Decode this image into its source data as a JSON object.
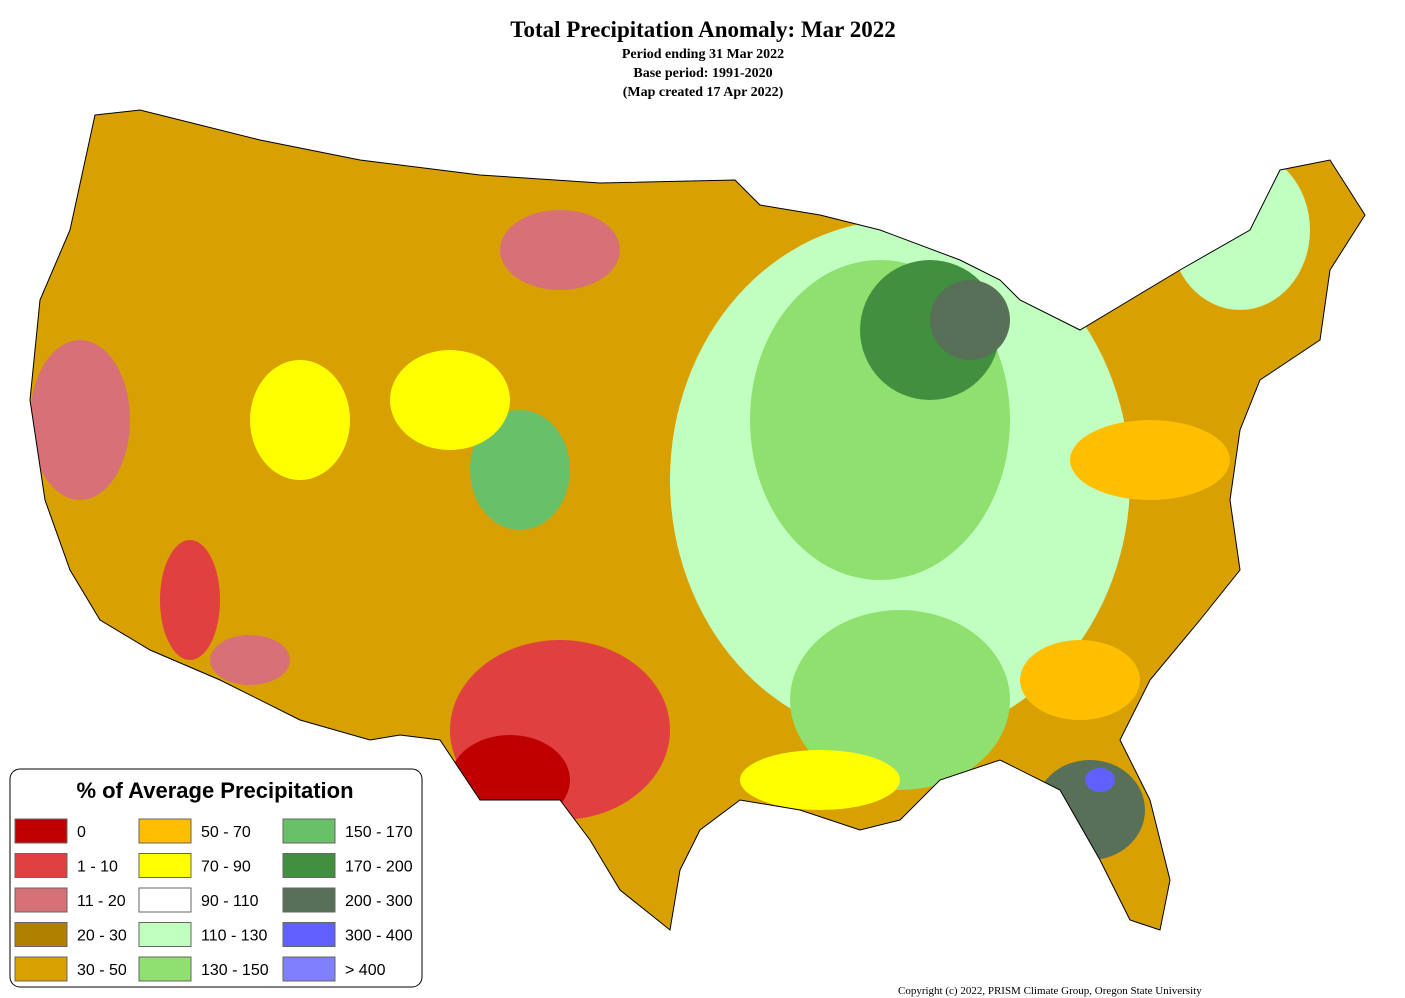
{
  "header": {
    "title": "Total Precipitation Anomaly: Mar 2022",
    "lines": [
      "Period ending 31 Mar 2022",
      "Base period: 1991-2020",
      "(Map created 17 Apr 2022)"
    ]
  },
  "legend": {
    "title": "% of Average Precipitation",
    "items": [
      {
        "label": "0",
        "color": "#c00000"
      },
      {
        "label": "1 - 10",
        "color": "#e04040"
      },
      {
        "label": "11 - 20",
        "color": "#d87078"
      },
      {
        "label": "20 - 30",
        "color": "#b08000"
      },
      {
        "label": "30 - 50",
        "color": "#d8a000"
      },
      {
        "label": "50 - 70",
        "color": "#ffbf00"
      },
      {
        "label": "70 - 90",
        "color": "#ffff00"
      },
      {
        "label": "90 - 110",
        "color": "#ffffff"
      },
      {
        "label": "110 - 130",
        "color": "#c0ffc0"
      },
      {
        "label": "130 - 150",
        "color": "#90e070"
      },
      {
        "label": "150 - 170",
        "color": "#68c068"
      },
      {
        "label": "170 - 200",
        "color": "#409040"
      },
      {
        "label": "200 - 300",
        "color": "#587058"
      },
      {
        "label": "300 - 400",
        "color": "#6060ff"
      },
      {
        "label": "> 400",
        "color": "#8080ff"
      }
    ]
  },
  "copyright": "Copyright (c) 2022, PRISM Climate Group, Oregon State University"
}
